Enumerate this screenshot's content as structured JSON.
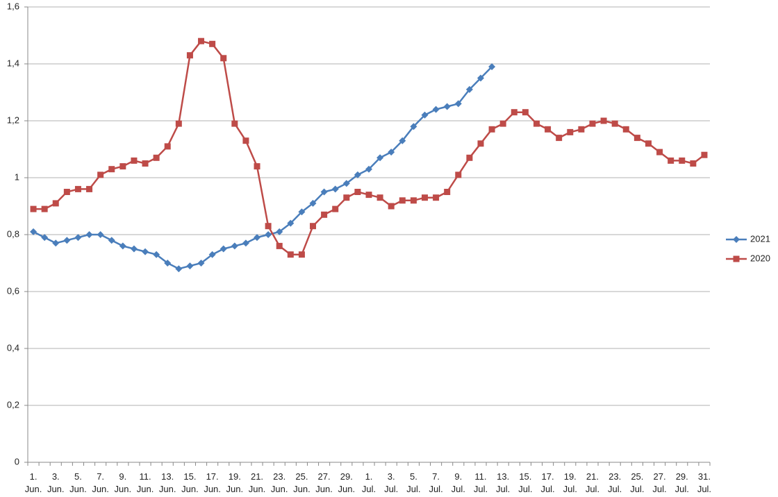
{
  "chart_data": {
    "type": "line",
    "categories": [
      "1. Jun.",
      null,
      "3. Jun.",
      null,
      "5. Jun.",
      null,
      "7. Jun.",
      null,
      "9. Jun.",
      null,
      "11. Jun.",
      null,
      "13. Jun.",
      null,
      "15. Jun.",
      null,
      "17. Jun.",
      null,
      "19. Jun.",
      null,
      "21. Jun.",
      null,
      "23. Jun.",
      null,
      "25. Jun.",
      null,
      "27. Jun.",
      null,
      "29. Jun.",
      null,
      "1. Jul.",
      null,
      "3. Jul.",
      null,
      "5. Jul.",
      null,
      "7. Jul.",
      null,
      "9. Jul.",
      null,
      "11. Jul.",
      null,
      "13. Jul.",
      null,
      "15. Jul.",
      null,
      "17. Jul.",
      null,
      "19. Jul.",
      null,
      "21. Jul.",
      null,
      "23. Jul.",
      null,
      "25. Jul.",
      null,
      "27. Jul.",
      null,
      "29. Jul.",
      null,
      "31. Jul."
    ],
    "series": [
      {
        "name": "2021",
        "color": "#4a7ebb",
        "marker": "diamond",
        "values": [
          0.81,
          0.79,
          0.77,
          0.78,
          0.79,
          0.8,
          0.8,
          0.78,
          0.76,
          0.75,
          0.74,
          0.73,
          0.7,
          0.68,
          0.69,
          0.7,
          0.73,
          0.75,
          0.76,
          0.77,
          0.79,
          0.8,
          0.81,
          0.84,
          0.88,
          0.91,
          0.95,
          0.96,
          0.98,
          1.01,
          1.03,
          1.07,
          1.09,
          1.13,
          1.18,
          1.22,
          1.24,
          1.25,
          1.26,
          1.31,
          1.35,
          1.39,
          null,
          null,
          null,
          null,
          null,
          null,
          null,
          null,
          null,
          null,
          null,
          null,
          null,
          null,
          null,
          null,
          null,
          null,
          null
        ]
      },
      {
        "name": "2020",
        "color": "#be4b48",
        "marker": "square",
        "values": [
          0.89,
          0.89,
          0.91,
          0.95,
          0.96,
          0.96,
          1.01,
          1.03,
          1.04,
          1.06,
          1.05,
          1.07,
          1.11,
          1.19,
          1.43,
          1.48,
          1.47,
          1.42,
          1.19,
          1.13,
          1.04,
          0.83,
          0.76,
          0.73,
          0.73,
          0.83,
          0.87,
          0.89,
          0.93,
          0.95,
          0.94,
          0.93,
          0.9,
          0.92,
          0.92,
          0.93,
          0.93,
          0.95,
          1.01,
          1.07,
          1.12,
          1.17,
          1.19,
          1.23,
          1.23,
          1.19,
          1.17,
          1.14,
          1.16,
          1.17,
          1.19,
          1.2,
          1.19,
          1.17,
          1.14,
          1.12,
          1.09,
          1.06,
          1.06,
          1.05,
          1.08
        ]
      }
    ],
    "ylim": [
      0,
      1.6
    ],
    "yticks": [
      0,
      {
        "value": 0.2,
        "label": "0,2"
      },
      {
        "value": 0.4,
        "label": "0,4"
      },
      {
        "value": 0.6,
        "label": "0,6"
      },
      {
        "value": 0.8,
        "label": "0,8"
      },
      1,
      {
        "value": 1.2,
        "label": "1,2"
      },
      {
        "value": 1.4,
        "label": "1,4"
      },
      {
        "value": 1.6,
        "label": "1,6"
      }
    ],
    "grid": true,
    "legend": "right"
  }
}
